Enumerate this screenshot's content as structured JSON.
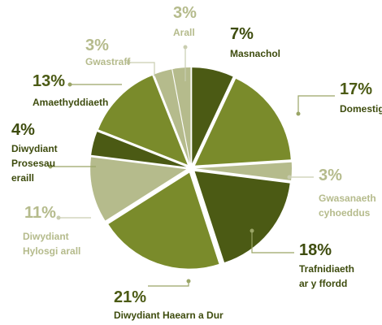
{
  "chart_data": {
    "type": "pie",
    "categories": [
      "Masnachol",
      "Domestig",
      "Gwasanaeth\ncyhoeddus",
      "Trafnidiaeth\nar y ffordd",
      "Diwydiant Haearn a Dur",
      "Diwydiant\nHylosgi arall",
      "Diwydiant\nProsesau\neraill",
      "Amaethyddiaeth",
      "Gwastraff",
      "Arall"
    ],
    "values": [
      7,
      17,
      3,
      18,
      21,
      11,
      4,
      13,
      3,
      3
    ],
    "value_labels": [
      "7%",
      "17%",
      "3%",
      "18%",
      "21%",
      "11%",
      "4%",
      "13%",
      "3%",
      "3%"
    ],
    "colors": [
      "#4b5a14",
      "#7a8b2b",
      "#b5bb8c",
      "#4b5a14",
      "#7a8b2b",
      "#b5bb8c",
      "#4b5a14",
      "#7a8b2b",
      "#b5bb8c",
      "#b5bb8c"
    ]
  }
}
